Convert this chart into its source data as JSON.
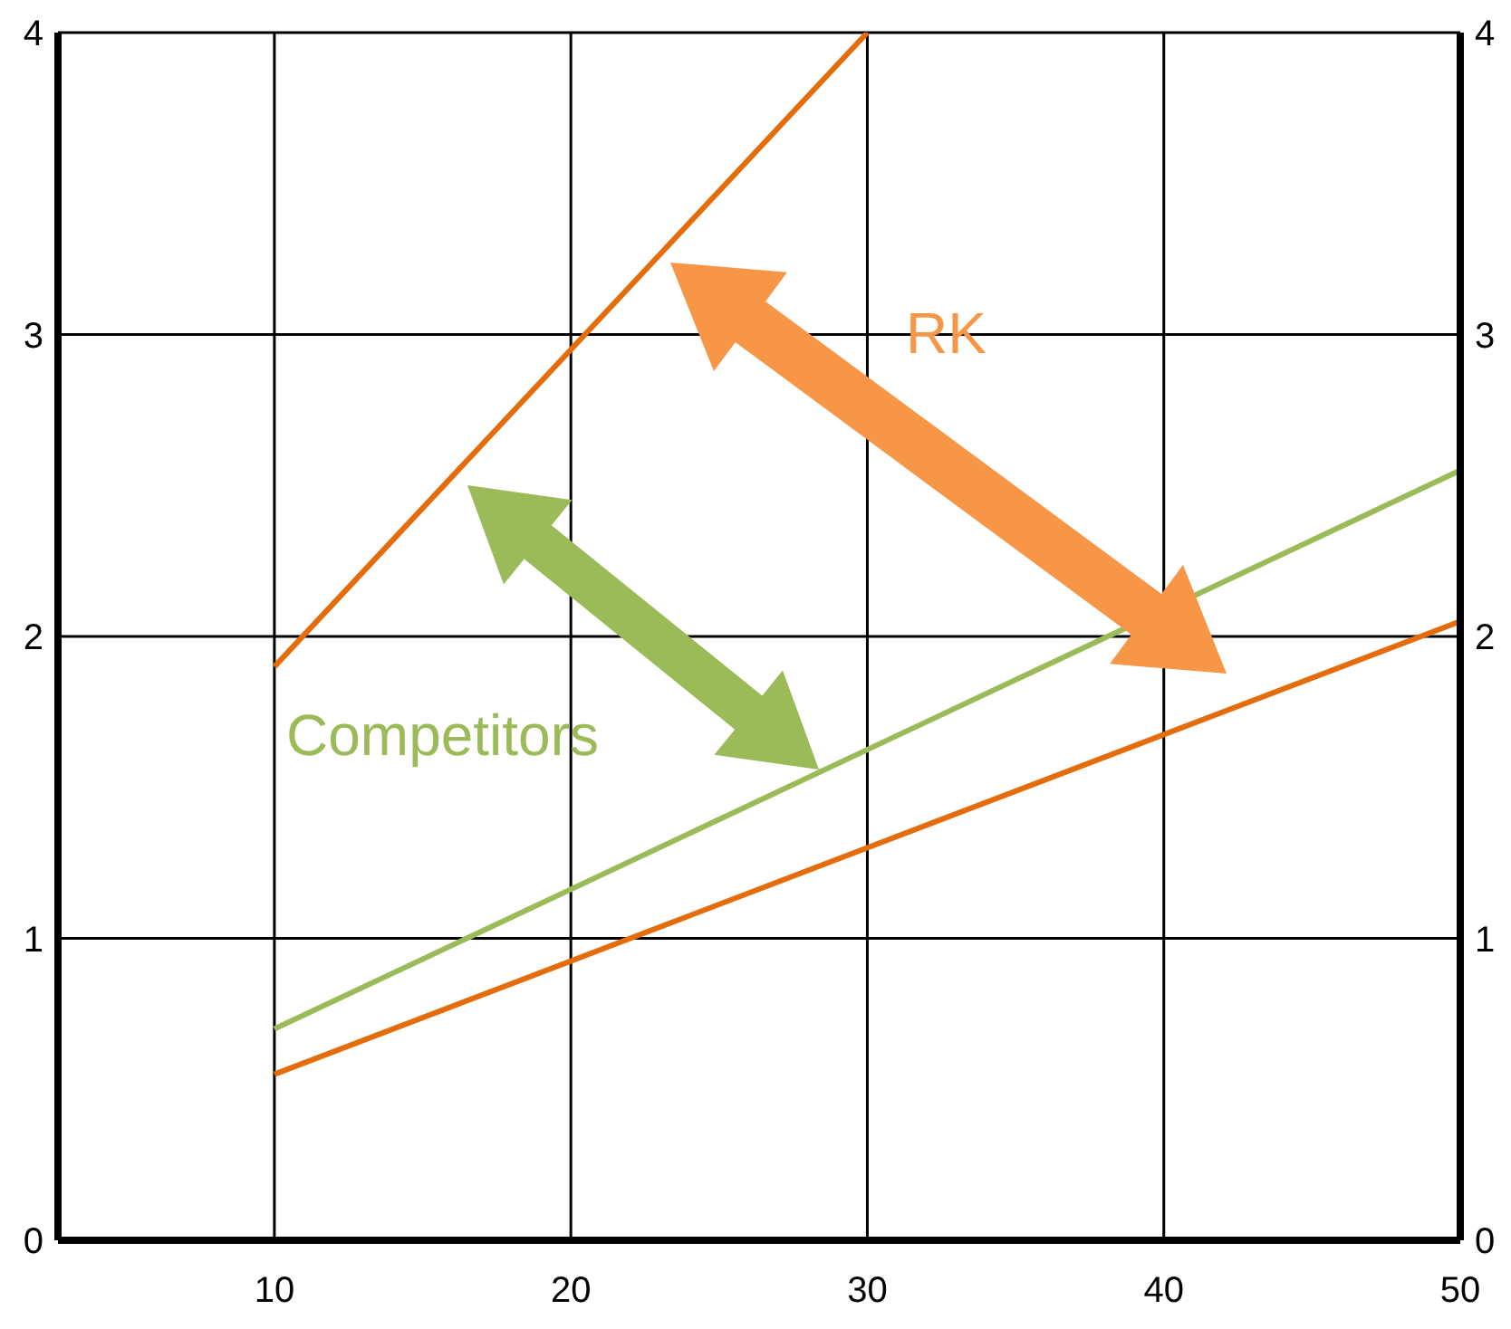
{
  "chart_data": {
    "type": "line",
    "xlim": [
      2.7,
      50
    ],
    "xticks": [
      10,
      20,
      30,
      40,
      50
    ],
    "ylim": [
      0,
      4
    ],
    "yticks": [
      0,
      1,
      2,
      3,
      4
    ],
    "y2lim": [
      0,
      4
    ],
    "y2ticks": [
      0,
      1,
      2,
      3,
      4
    ],
    "grid": true,
    "marker": "none",
    "line_style": "solid",
    "series": [
      {
        "color": "#e46c0a",
        "x": [
          10,
          30
        ],
        "values": [
          1.9,
          4
        ]
      },
      {
        "color": "#9bbb59",
        "x": [
          10,
          50
        ],
        "values": [
          0.7,
          2.55
        ]
      },
      {
        "color": "#e46c0a",
        "x": [
          10,
          50
        ],
        "values": [
          0.55,
          2.05
        ]
      }
    ],
    "annotations": [
      "RK",
      "Competitors"
    ]
  }
}
